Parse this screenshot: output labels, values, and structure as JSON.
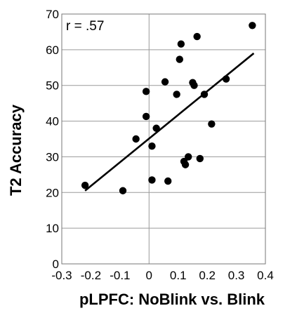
{
  "chart_data": {
    "type": "scatter",
    "xlabel": "pLPFC: NoBlink vs. Blink",
    "ylabel": "T2 Accuracy",
    "annotation": "r = .57",
    "xlim": [
      -0.3,
      0.4
    ],
    "ylim": [
      0,
      70
    ],
    "x_ticks": [
      "-0.3",
      "-0.2",
      "-0.1",
      "0",
      "0.1",
      "0.2",
      "0.3",
      "0.4"
    ],
    "y_ticks": [
      "0",
      "10",
      "20",
      "30",
      "40",
      "50",
      "60",
      "70"
    ],
    "grid": true,
    "point_color": "#000000",
    "fit_line": {
      "x": [
        -0.22,
        0.36
      ],
      "y": [
        20.5,
        59
      ]
    },
    "points": [
      {
        "x": -0.22,
        "y": 22
      },
      {
        "x": -0.09,
        "y": 20.5
      },
      {
        "x": -0.045,
        "y": 35
      },
      {
        "x": -0.01,
        "y": 48.3
      },
      {
        "x": -0.01,
        "y": 41.3
      },
      {
        "x": 0.01,
        "y": 33
      },
      {
        "x": 0.01,
        "y": 23.5
      },
      {
        "x": 0.025,
        "y": 38
      },
      {
        "x": 0.055,
        "y": 51
      },
      {
        "x": 0.065,
        "y": 23.2
      },
      {
        "x": 0.095,
        "y": 47.5
      },
      {
        "x": 0.105,
        "y": 57.3
      },
      {
        "x": 0.11,
        "y": 61.6
      },
      {
        "x": 0.12,
        "y": 28.7
      },
      {
        "x": 0.125,
        "y": 27.8
      },
      {
        "x": 0.135,
        "y": 30
      },
      {
        "x": 0.15,
        "y": 50.8
      },
      {
        "x": 0.155,
        "y": 50
      },
      {
        "x": 0.165,
        "y": 63.7
      },
      {
        "x": 0.175,
        "y": 29.5
      },
      {
        "x": 0.19,
        "y": 47.5
      },
      {
        "x": 0.215,
        "y": 39.2
      },
      {
        "x": 0.265,
        "y": 51.8
      },
      {
        "x": 0.355,
        "y": 66.8
      }
    ]
  }
}
